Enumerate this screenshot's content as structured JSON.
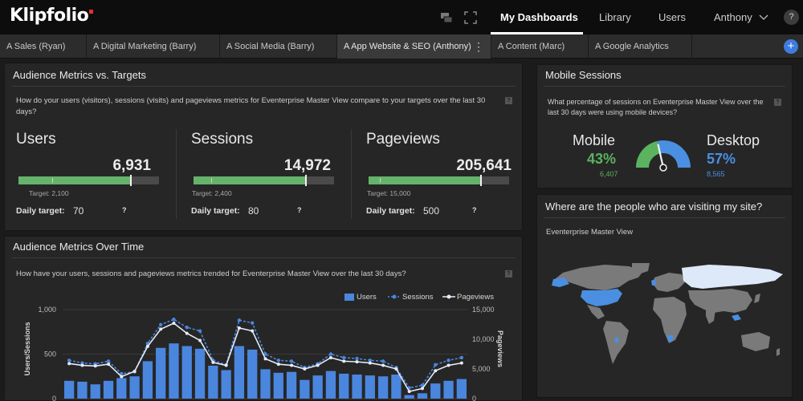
{
  "app": {
    "logo": "Klipfolio"
  },
  "nav": {
    "items": [
      {
        "label": "My Dashboards",
        "active": true
      },
      {
        "label": "Library"
      },
      {
        "label": "Users"
      },
      {
        "label": "Anthony"
      }
    ],
    "help": "?"
  },
  "tabs": [
    {
      "label": "A Sales (Ryan)"
    },
    {
      "label": "A Digital Marketing (Barry)"
    },
    {
      "label": "A Social Media (Barry)"
    },
    {
      "label": "A App Website & SEO (Anthony)",
      "active": true
    },
    {
      "label": "A Content (Marc)"
    },
    {
      "label": "A Google Analytics"
    }
  ],
  "tab_add": "+",
  "tab_menu": "⋮",
  "audience_targets": {
    "title": "Audience Metrics vs. Targets",
    "description": "How do your users (visitors), sessions (visits) and pageviews metrics for Eventerprise Master View compare to your targets over the last 30 days?",
    "help": "?",
    "daily_label": "Daily target:",
    "metrics": [
      {
        "name": "Users",
        "value": "6,931",
        "target": "Target: 2,100",
        "daily_target": "70",
        "fill": 0.8,
        "help": "?"
      },
      {
        "name": "Sessions",
        "value": "14,972",
        "target": "Target: 2,400",
        "daily_target": "80",
        "fill": 0.8,
        "help": "?"
      },
      {
        "name": "Pageviews",
        "value": "205,641",
        "target": "Target: 15,000",
        "daily_target": "500",
        "fill": 0.8,
        "help": "?"
      }
    ]
  },
  "mobile_sessions": {
    "title": "Mobile Sessions",
    "description": "What percentage of sessions on Eventerprise Master View over the last 30 days were using mobile devices?",
    "help": "?",
    "mobile": {
      "label": "Mobile",
      "pct": "43%",
      "count": "6,407",
      "color": "#5bb35f"
    },
    "desktop": {
      "label": "Desktop",
      "pct": "57%",
      "count": "8,565",
      "color": "#4a8fe2"
    },
    "mobile_share": 0.43
  },
  "geo": {
    "title": "Where are the people who are visiting my site?",
    "subtitle": "Eventerprise Master View"
  },
  "audience_time": {
    "title": "Audience Metrics Over Time",
    "description": "How have your users, sessions and pageviews metrics trended for Eventerprise Master View over the last 30 days?",
    "help": "?"
  },
  "chart_data": {
    "type": "bar",
    "legend": [
      "Users",
      "Sessions",
      "Pageviews"
    ],
    "ylabel": "Users/Sessions",
    "y2label": "Pageviews",
    "y_ticks": [
      "1,000",
      "500",
      "0"
    ],
    "y2_ticks": [
      "15,000",
      "10,000",
      "5,000",
      "0"
    ],
    "ylim": [
      0,
      1000
    ],
    "y2lim": [
      0,
      15000
    ],
    "legend_position": "top-right",
    "series": [
      {
        "name": "Users",
        "color": "#4a86de",
        "values": [
          200,
          190,
          160,
          200,
          230,
          250,
          420,
          570,
          620,
          590,
          560,
          370,
          320,
          590,
          550,
          330,
          290,
          300,
          210,
          260,
          310,
          280,
          270,
          260,
          250,
          270,
          40,
          60,
          170,
          200,
          220
        ]
      },
      {
        "name": "Sessions",
        "color": "#4a86de",
        "values": [
          430,
          400,
          390,
          420,
          280,
          300,
          620,
          830,
          890,
          800,
          760,
          430,
          380,
          880,
          850,
          500,
          430,
          420,
          350,
          390,
          500,
          460,
          450,
          430,
          420,
          350,
          120,
          150,
          380,
          430,
          460
        ]
      },
      {
        "name": "Pageviews",
        "color": "#e6ecf7",
        "values": [
          5900,
          5600,
          5500,
          5800,
          3700,
          4600,
          8800,
          11700,
          12700,
          11000,
          9800,
          6100,
          5600,
          11900,
          11400,
          6700,
          5800,
          5600,
          5000,
          5600,
          6900,
          6300,
          6200,
          6000,
          5600,
          5000,
          1200,
          1700,
          4700,
          5600,
          6000
        ]
      }
    ]
  }
}
